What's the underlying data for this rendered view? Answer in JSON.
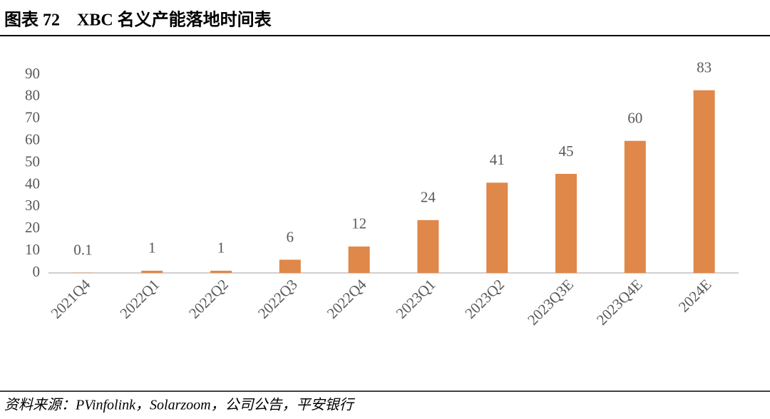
{
  "chart_data": {
    "type": "bar",
    "title": "图表 72　XBC 名义产能落地时间表",
    "source": "资料来源：PVinfolink，Solarzoom，公司公告，平安银行",
    "categories": [
      "2021Q4",
      "2022Q1",
      "2022Q2",
      "2022Q3",
      "2022Q4",
      "2023Q1",
      "2023Q2",
      "2023Q3E",
      "2023Q4E",
      "2024E"
    ],
    "values": [
      0.1,
      1,
      1,
      6,
      12,
      24,
      41,
      45,
      60,
      83
    ],
    "color": "#e0874a",
    "ylim": [
      0,
      90
    ],
    "yticks": [
      0,
      10,
      20,
      30,
      40,
      50,
      60,
      70,
      80,
      90
    ],
    "grid": false
  }
}
